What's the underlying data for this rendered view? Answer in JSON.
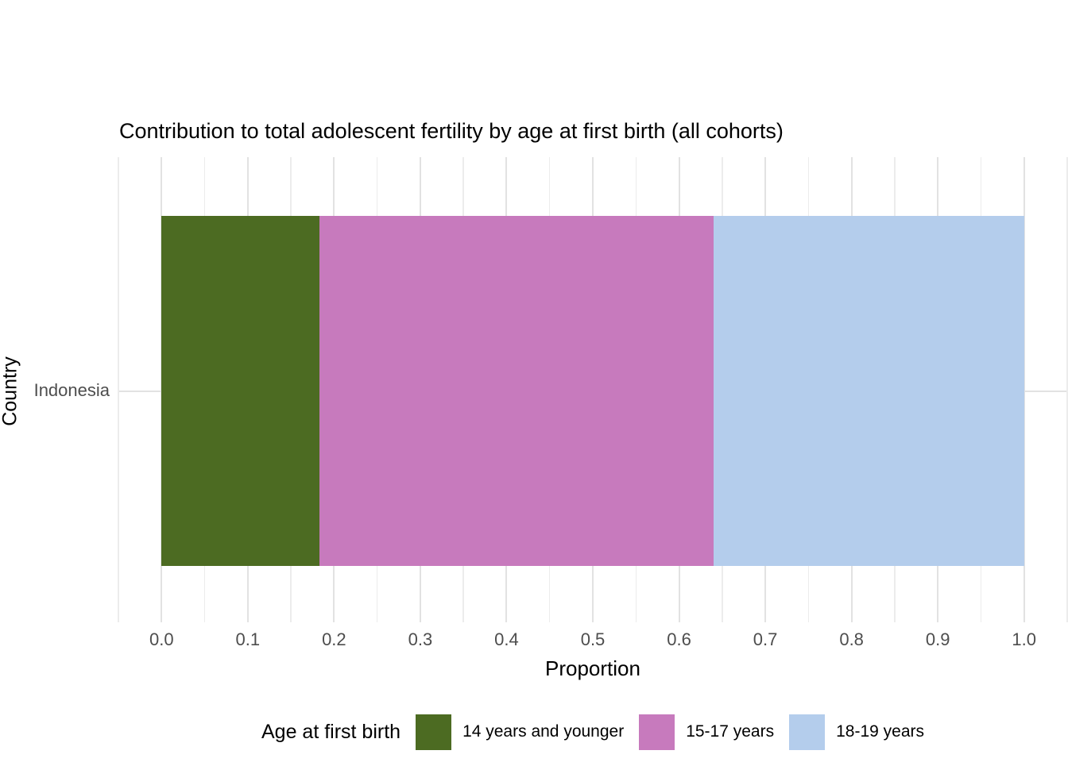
{
  "title": "Contribution to total adolescent fertility by age at first birth (all cohorts)",
  "chart_data": {
    "type": "bar",
    "orientation": "horizontal",
    "stacked": true,
    "title": "Contribution to total adolescent fertility by age at first birth (all cohorts)",
    "xlabel": "Proportion",
    "ylabel": "Country",
    "categories": [
      "Indonesia"
    ],
    "series": [
      {
        "name": "14 years and younger",
        "values": [
          0.183
        ],
        "color": "#4c6b22"
      },
      {
        "name": "15-17 years",
        "values": [
          0.457
        ],
        "color": "#c77abd"
      },
      {
        "name": "18-19 years",
        "values": [
          0.36
        ],
        "color": "#b4cdec"
      }
    ],
    "legend_title": "Age at first birth",
    "legend_position": "bottom",
    "grid": true,
    "xlim": [
      -0.05,
      1.05
    ],
    "x_ticks": [
      0.0,
      0.1,
      0.2,
      0.3,
      0.4,
      0.5,
      0.6,
      0.7,
      0.8,
      0.9,
      1.0
    ],
    "x_tick_labels": [
      "0.0",
      "0.1",
      "0.2",
      "0.3",
      "0.4",
      "0.5",
      "0.6",
      "0.7",
      "0.8",
      "0.9",
      "1.0"
    ],
    "x_minor_step": 0.05
  },
  "colors": {
    "background": "#ffffff",
    "grid_major": "#e2e2e2",
    "grid_minor": "#ececec",
    "tick_text": "#4d4d4d",
    "text": "#000000"
  }
}
